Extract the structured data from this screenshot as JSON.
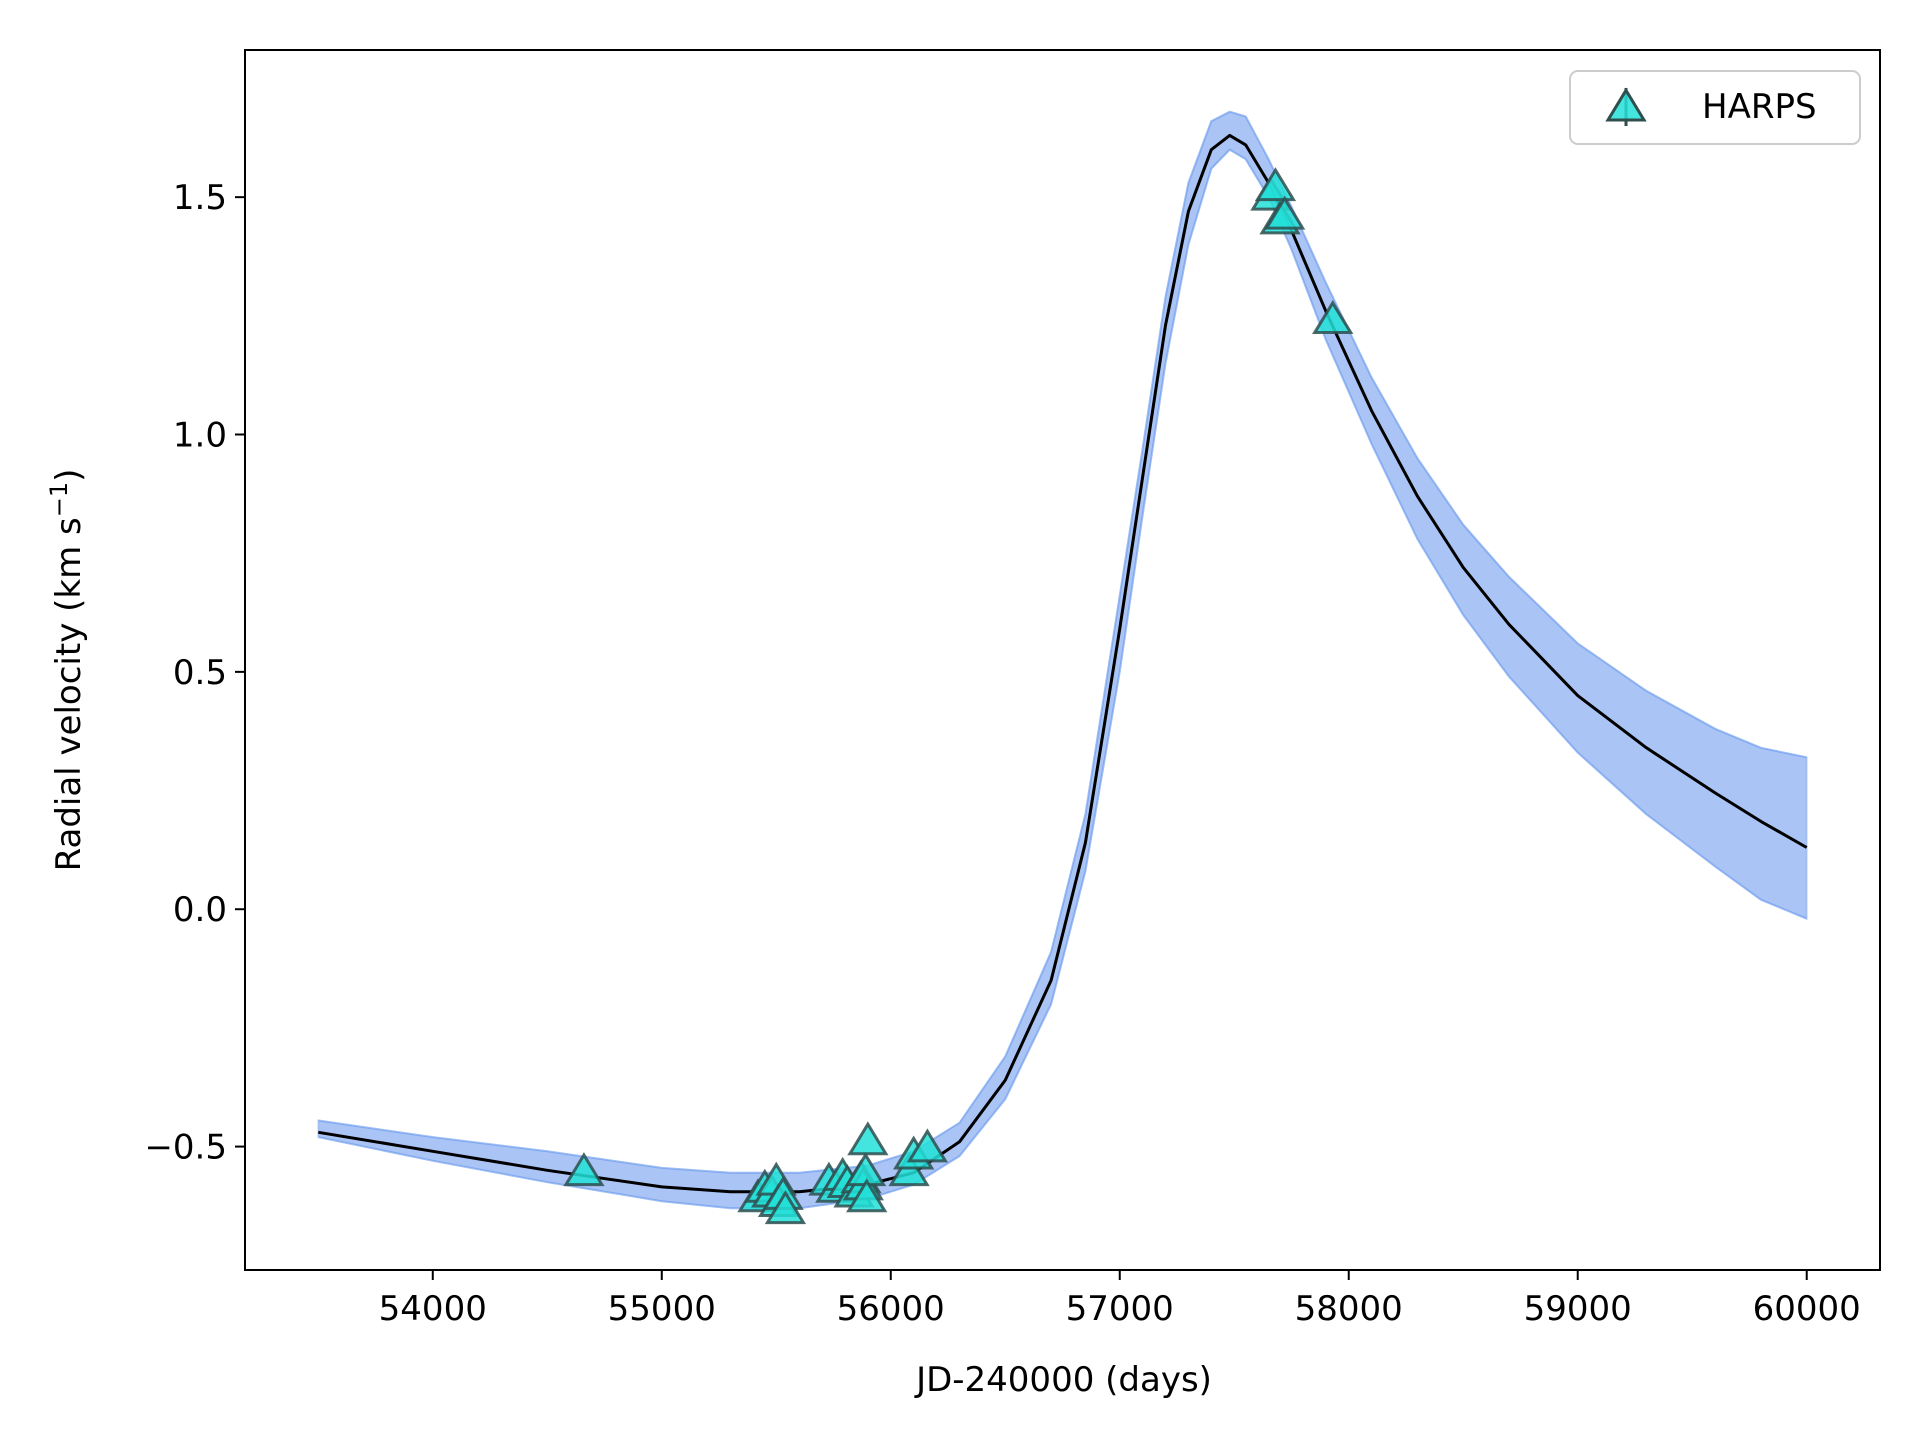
{
  "chart_data": {
    "type": "line",
    "title": "",
    "xlabel": "JD-240000 (days)",
    "ylabel": "Radial velocity (km s",
    "ylabel_superscript": "−1",
    "ylabel_close": ")",
    "xlim": [
      53180,
      60320
    ],
    "ylim": [
      -0.76,
      1.81
    ],
    "xticks": [
      54000,
      55000,
      56000,
      57000,
      58000,
      59000,
      60000
    ],
    "xtick_labels": [
      "54000",
      "55000",
      "56000",
      "57000",
      "58000",
      "59000",
      "60000"
    ],
    "yticks": [
      -0.5,
      0.0,
      0.5,
      1.0,
      1.5
    ],
    "ytick_labels": [
      "−0.5",
      "0.0",
      "0.5",
      "1.0",
      "1.5"
    ],
    "grid": false,
    "legend": {
      "location": "upper right",
      "entries": [
        {
          "label": "HARPS",
          "marker": "triangle"
        }
      ]
    },
    "colors": {
      "best_fit": "#000000",
      "posterior": "#6495ed",
      "harps_fill": "#22e0d8",
      "harps_edge": "#2f4f4f"
    },
    "best_fit": {
      "x": [
        53500,
        54000,
        54500,
        55000,
        55300,
        55600,
        55900,
        56100,
        56300,
        56500,
        56700,
        56850,
        57000,
        57100,
        57200,
        57300,
        57400,
        57480,
        57550,
        57650,
        57750,
        57900,
        58100,
        58300,
        58500,
        58700,
        59000,
        59300,
        59600,
        59800,
        60000
      ],
      "y": [
        -0.47,
        -0.51,
        -0.55,
        -0.585,
        -0.595,
        -0.595,
        -0.58,
        -0.555,
        -0.49,
        -0.36,
        -0.15,
        0.14,
        0.59,
        0.91,
        1.23,
        1.47,
        1.6,
        1.63,
        1.61,
        1.53,
        1.43,
        1.26,
        1.05,
        0.87,
        0.72,
        0.6,
        0.45,
        0.34,
        0.245,
        0.185,
        0.13
      ]
    },
    "posterior_band": {
      "x": [
        53500,
        54000,
        54500,
        55000,
        55300,
        55600,
        55900,
        56100,
        56300,
        56500,
        56700,
        56850,
        57000,
        57100,
        57200,
        57300,
        57400,
        57480,
        57550,
        57650,
        57750,
        57900,
        58100,
        58300,
        58500,
        58700,
        59000,
        59300,
        59600,
        59800,
        60000
      ],
      "y_low": [
        -0.48,
        -0.53,
        -0.575,
        -0.615,
        -0.63,
        -0.63,
        -0.61,
        -0.58,
        -0.52,
        -0.4,
        -0.2,
        0.08,
        0.5,
        0.83,
        1.15,
        1.4,
        1.56,
        1.6,
        1.58,
        1.5,
        1.39,
        1.2,
        0.98,
        0.78,
        0.62,
        0.49,
        0.33,
        0.2,
        0.09,
        0.02,
        -0.02
      ],
      "y_high": [
        -0.445,
        -0.48,
        -0.51,
        -0.545,
        -0.555,
        -0.555,
        -0.54,
        -0.51,
        -0.45,
        -0.31,
        -0.09,
        0.2,
        0.66,
        0.97,
        1.29,
        1.53,
        1.66,
        1.68,
        1.67,
        1.58,
        1.48,
        1.32,
        1.12,
        0.95,
        0.81,
        0.7,
        0.56,
        0.46,
        0.38,
        0.34,
        0.32
      ]
    },
    "series": [
      {
        "name": "HARPS",
        "x": [
          54660,
          55420,
          55450,
          55480,
          55500,
          55510,
          55530,
          55540,
          55730,
          55760,
          55790,
          55810,
          55840,
          55870,
          55880,
          55890,
          55895,
          55900,
          56080,
          56100,
          56160,
          57660,
          57680,
          57700,
          57720,
          57930
        ],
        "y": [
          -0.555,
          -0.61,
          -0.59,
          -0.6,
          -0.575,
          -0.62,
          -0.605,
          -0.635,
          -0.575,
          -0.59,
          -0.565,
          -0.58,
          -0.6,
          -0.57,
          -0.585,
          -0.555,
          -0.61,
          -0.49,
          -0.555,
          -0.52,
          -0.505,
          1.5,
          1.52,
          1.45,
          1.46,
          1.24
        ]
      }
    ]
  }
}
